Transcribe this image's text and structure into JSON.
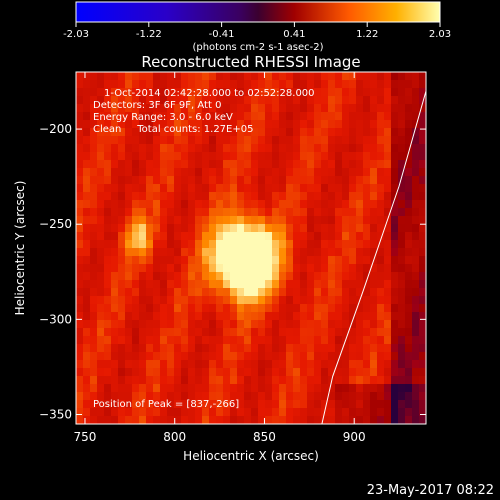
{
  "chart_data": {
    "type": "heatmap",
    "title": "Reconstructed RHESSI Image",
    "xlabel": "Heliocentric X (arcsec)",
    "ylabel": "Heliocentric Y (arcsec)",
    "xlim": [
      745,
      940
    ],
    "ylim": [
      -355,
      -170
    ],
    "xticks": [
      750,
      800,
      850,
      900
    ],
    "yticks": [
      -200,
      -250,
      -300,
      -350
    ],
    "colorbar": {
      "ticks": [
        "-2.03",
        "-1.22",
        "-0.41",
        "0.41",
        "1.22",
        "2.03"
      ],
      "unit_label": "(photons cm-2 s-1 asec-2)",
      "range": [
        -2.03,
        2.03
      ]
    },
    "annotations": [
      "1-Oct-2014 02:42:28.000 to 02:52:28.000",
      "Detectors: 3F 6F 9F, Att 0",
      "Energy Range: 3.0 - 6.0 keV",
      "Clean     Total counts: 1.27E+05"
    ],
    "peak_label": "Position of Peak = [837,-266]",
    "peak": [
      837,
      -266
    ],
    "limb_points": [
      [
        940,
        -180
      ],
      [
        925,
        -230
      ],
      [
        905,
        -285
      ],
      [
        888,
        -330
      ],
      [
        882,
        -355
      ]
    ],
    "footer_date": "23-May-2017 08:22"
  }
}
